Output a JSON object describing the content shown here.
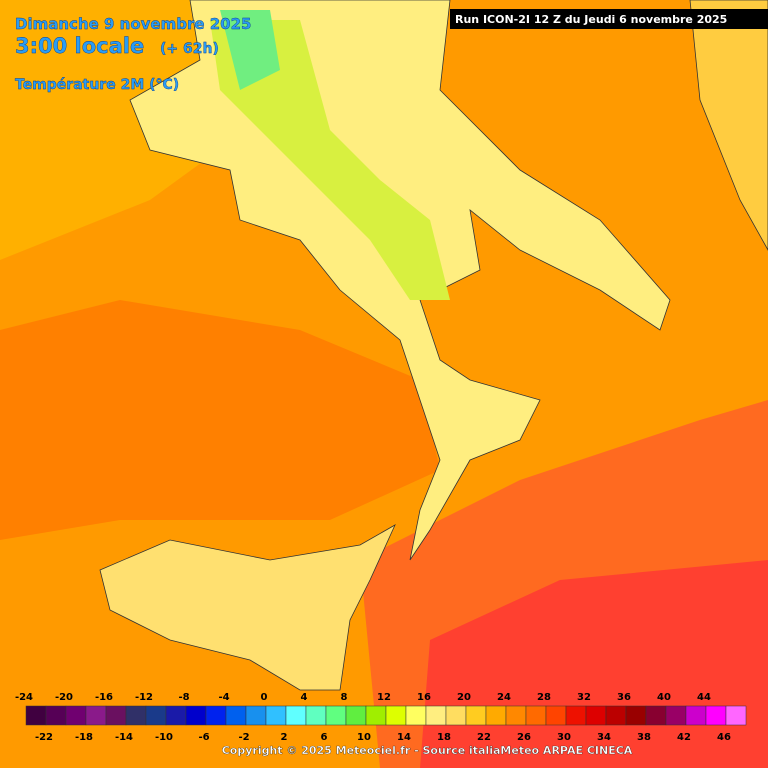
{
  "header": {
    "date": "Dimanche 9 novembre 2025",
    "time": "3:00 locale",
    "lead": "(+ 62h)",
    "field": "Température 2M (°C)"
  },
  "run": "Run ICON-2I 12 Z du Jeudi 6 novembre 2025",
  "copyright": "Copyright © 2025 Meteociel.fr - Source italiaMeteo ARPAE CINECA",
  "legend": {
    "bins": [
      {
        "value": -24,
        "color": "#400040"
      },
      {
        "value": -22,
        "color": "#560056"
      },
      {
        "value": -20,
        "color": "#700070"
      },
      {
        "value": -18,
        "color": "#8a1a8a"
      },
      {
        "value": -16,
        "color": "#6a1060"
      },
      {
        "value": -14,
        "color": "#303068"
      },
      {
        "value": -12,
        "color": "#1a3a8a"
      },
      {
        "value": -10,
        "color": "#1a1aa8"
      },
      {
        "value": -8,
        "color": "#0000cc"
      },
      {
        "value": -6,
        "color": "#0022ee"
      },
      {
        "value": -4,
        "color": "#0060ee"
      },
      {
        "value": -2,
        "color": "#1890ee"
      },
      {
        "value": 0,
        "color": "#30c0ff"
      },
      {
        "value": 2,
        "color": "#60ffff"
      },
      {
        "value": 4,
        "color": "#60ffc0"
      },
      {
        "value": 6,
        "color": "#60ff80"
      },
      {
        "value": 8,
        "color": "#60ee40"
      },
      {
        "value": 10,
        "color": "#a0ee00"
      },
      {
        "value": 12,
        "color": "#ddff00"
      },
      {
        "value": 14,
        "color": "#ffff60"
      },
      {
        "value": 16,
        "color": "#ffee80"
      },
      {
        "value": 18,
        "color": "#ffdd60"
      },
      {
        "value": 20,
        "color": "#ffcc20"
      },
      {
        "value": 22,
        "color": "#ffaa00"
      },
      {
        "value": 24,
        "color": "#ff8800"
      },
      {
        "value": 26,
        "color": "#ff6a00"
      },
      {
        "value": 28,
        "color": "#ff4400"
      },
      {
        "value": 30,
        "color": "#ee1100"
      },
      {
        "value": 32,
        "color": "#dd0000"
      },
      {
        "value": 34,
        "color": "#bb0000"
      },
      {
        "value": 36,
        "color": "#990000"
      },
      {
        "value": 38,
        "color": "#880030"
      },
      {
        "value": 40,
        "color": "#990066"
      },
      {
        "value": 42,
        "color": "#cc00cc"
      },
      {
        "value": 44,
        "color": "#ff00ff"
      },
      {
        "value": 46,
        "color": "#ff66ff"
      }
    ]
  }
}
